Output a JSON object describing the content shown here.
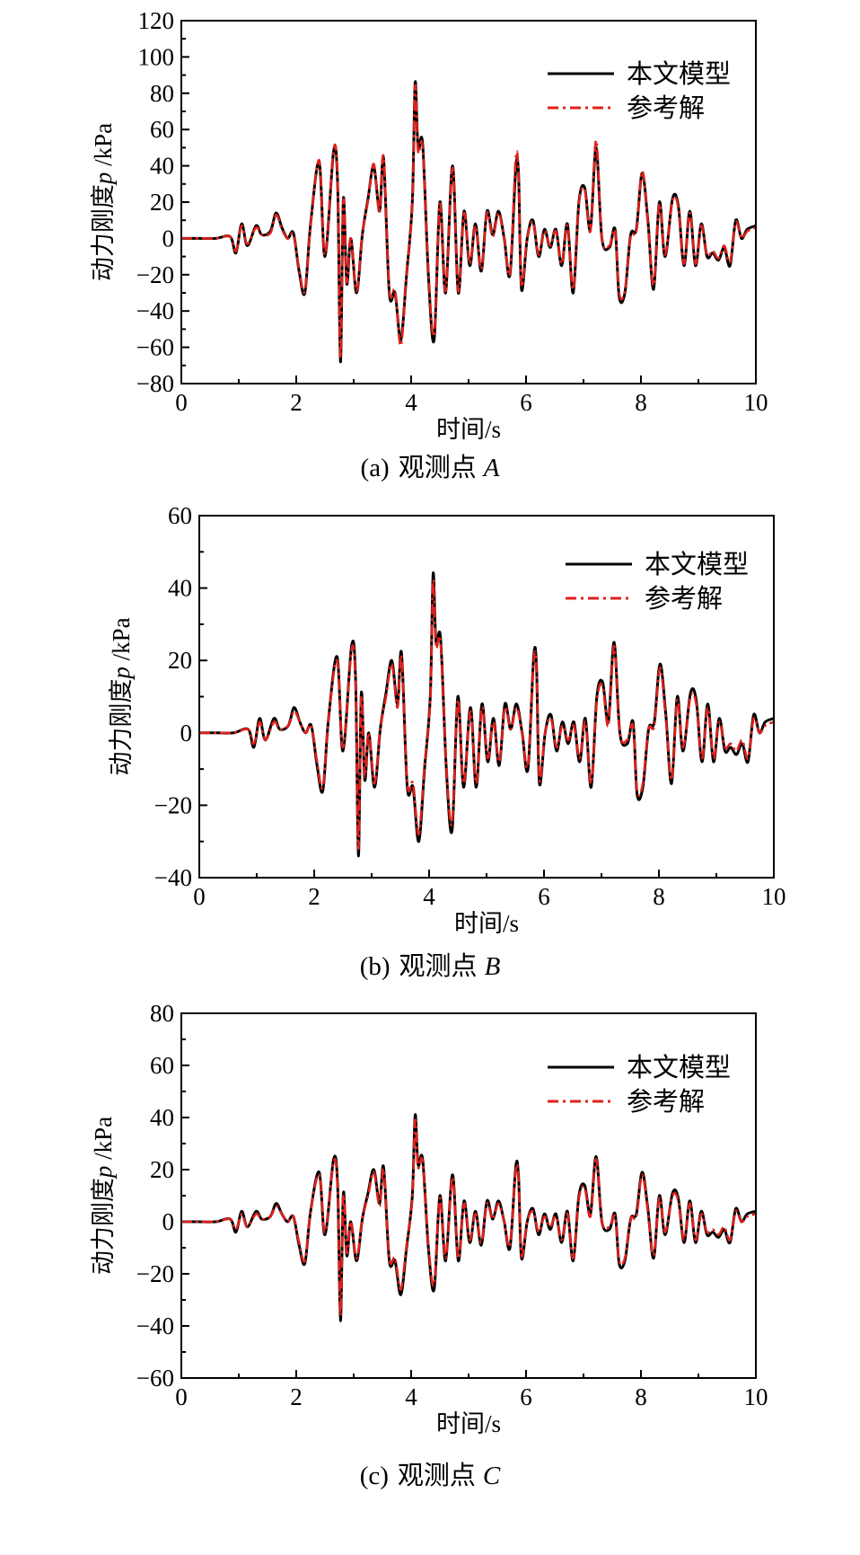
{
  "figure": {
    "colors": {
      "model": "#000000",
      "reference": "#e0201b",
      "axis": "#000000"
    },
    "legend": {
      "model": "本文模型",
      "reference": "参考解"
    },
    "panels": [
      {
        "caption_prefix": "(a)",
        "caption_text": "观测点",
        "caption_point": "A",
        "xlabel": "时间/s",
        "ylabel_prefix": "动力刚度",
        "ylabel_var": "p",
        "ylabel_unit": " /kPa"
      },
      {
        "caption_prefix": "(b)",
        "caption_text": "观测点",
        "caption_point": "B",
        "xlabel": "时间/s",
        "ylabel_prefix": "动力刚度",
        "ylabel_var": "p",
        "ylabel_unit": " /kPa"
      },
      {
        "caption_prefix": "(c)",
        "caption_text": "观测点",
        "caption_point": "C",
        "xlabel": "时间/s",
        "ylabel_prefix": "动力刚度",
        "ylabel_var": "p",
        "ylabel_unit": " /kPa"
      }
    ]
  },
  "chart_data": [
    {
      "type": "line",
      "xlim": [
        0,
        10
      ],
      "ylim": [
        -80,
        120
      ],
      "xticks": [
        0,
        2,
        4,
        6,
        8,
        10
      ],
      "yticks": [
        -80,
        -60,
        -40,
        -20,
        0,
        20,
        40,
        60,
        80,
        100,
        120
      ],
      "legend_position": "top-right",
      "x": [
        0,
        0.3,
        0.6,
        0.85,
        0.95,
        1.05,
        1.15,
        1.3,
        1.4,
        1.55,
        1.65,
        1.75,
        1.85,
        1.95,
        2.05,
        2.15,
        2.25,
        2.4,
        2.5,
        2.65,
        2.72,
        2.77,
        2.82,
        2.88,
        2.95,
        3.05,
        3.15,
        3.25,
        3.35,
        3.45,
        3.52,
        3.62,
        3.72,
        3.82,
        3.92,
        4.02,
        4.07,
        4.12,
        4.2,
        4.3,
        4.4,
        4.5,
        4.6,
        4.72,
        4.82,
        4.92,
        5.02,
        5.12,
        5.22,
        5.32,
        5.42,
        5.52,
        5.62,
        5.72,
        5.82,
        5.87,
        5.92,
        6.02,
        6.12,
        6.22,
        6.32,
        6.42,
        6.52,
        6.62,
        6.72,
        6.82,
        6.92,
        7.02,
        7.12,
        7.22,
        7.32,
        7.45,
        7.55,
        7.62,
        7.72,
        7.82,
        7.92,
        8.02,
        8.12,
        8.22,
        8.32,
        8.42,
        8.55,
        8.65,
        8.75,
        8.85,
        8.95,
        9.05,
        9.15,
        9.25,
        9.35,
        9.45,
        9.55,
        9.65,
        9.75,
        9.85,
        10.0
      ],
      "series": [
        {
          "name": "本文模型",
          "values": [
            0,
            0,
            0,
            1,
            -8,
            8,
            -4,
            7,
            2,
            4,
            14,
            6,
            0,
            3,
            -18,
            -30,
            8,
            42,
            -10,
            48,
            30,
            -68,
            22,
            -25,
            0,
            -30,
            2,
            22,
            40,
            15,
            44,
            -30,
            -30,
            -56,
            -20,
            20,
            86,
            50,
            52,
            -20,
            -56,
            20,
            -30,
            40,
            -30,
            15,
            -15,
            8,
            -18,
            15,
            2,
            15,
            0,
            -20,
            38,
            35,
            -28,
            0,
            10,
            -10,
            5,
            -5,
            5,
            -15,
            8,
            -30,
            20,
            28,
            5,
            50,
            0,
            -5,
            5,
            -32,
            -30,
            2,
            5,
            36,
            10,
            -28,
            20,
            -10,
            22,
            18,
            -15,
            15,
            -15,
            8,
            -10,
            -8,
            -12,
            -5,
            -15,
            10,
            0,
            5,
            7
          ]
        },
        {
          "name": "参考解",
          "values": [
            0,
            0,
            0,
            1,
            -7,
            7,
            -3,
            6,
            2,
            3,
            13,
            5,
            0,
            2,
            -17,
            -29,
            7,
            43,
            -9,
            49,
            31,
            -66,
            21,
            -24,
            0,
            -29,
            2,
            21,
            41,
            14,
            45,
            -28,
            -29,
            -59,
            -19,
            19,
            84,
            48,
            50,
            -18,
            -53,
            19,
            -29,
            39,
            -29,
            14,
            -14,
            7,
            -17,
            14,
            1,
            14,
            0,
            -19,
            44,
            34,
            -26,
            0,
            9,
            -9,
            4,
            -4,
            4,
            -14,
            7,
            -28,
            19,
            27,
            4,
            54,
            0,
            -4,
            4,
            -30,
            -29,
            1,
            4,
            37,
            9,
            -26,
            19,
            -9,
            21,
            17,
            -14,
            14,
            -14,
            7,
            -9,
            -7,
            -11,
            -4,
            -13,
            9,
            0,
            4,
            6
          ]
        }
      ]
    },
    {
      "type": "line",
      "xlim": [
        0,
        10
      ],
      "ylim": [
        -40,
        60
      ],
      "xticks": [
        0,
        2,
        4,
        6,
        8,
        10
      ],
      "yticks": [
        -40,
        -20,
        0,
        20,
        40,
        60
      ],
      "legend_position": "top-right",
      "x": [
        0,
        0.3,
        0.6,
        0.85,
        0.95,
        1.05,
        1.15,
        1.3,
        1.4,
        1.55,
        1.65,
        1.75,
        1.85,
        1.95,
        2.05,
        2.15,
        2.25,
        2.4,
        2.5,
        2.65,
        2.72,
        2.77,
        2.82,
        2.88,
        2.95,
        3.05,
        3.15,
        3.25,
        3.35,
        3.45,
        3.52,
        3.62,
        3.72,
        3.82,
        3.92,
        4.02,
        4.07,
        4.12,
        4.2,
        4.3,
        4.4,
        4.5,
        4.6,
        4.72,
        4.82,
        4.92,
        5.02,
        5.12,
        5.22,
        5.32,
        5.42,
        5.52,
        5.62,
        5.72,
        5.82,
        5.87,
        5.92,
        6.02,
        6.12,
        6.22,
        6.32,
        6.42,
        6.52,
        6.62,
        6.72,
        6.82,
        6.92,
        7.02,
        7.12,
        7.22,
        7.32,
        7.45,
        7.55,
        7.62,
        7.72,
        7.82,
        7.92,
        8.02,
        8.12,
        8.22,
        8.32,
        8.42,
        8.55,
        8.65,
        8.75,
        8.85,
        8.95,
        9.05,
        9.15,
        9.25,
        9.35,
        9.45,
        9.55,
        9.65,
        9.75,
        9.85,
        10.0
      ],
      "series": [
        {
          "name": "本文模型",
          "values": [
            0,
            0,
            0,
            1,
            -4,
            4,
            -2,
            4,
            1,
            2,
            7,
            3,
            0,
            2,
            -9,
            -16,
            4,
            21,
            -5,
            24,
            15,
            -34,
            11,
            -13,
            0,
            -15,
            1,
            11,
            20,
            8,
            22,
            -15,
            -15,
            -30,
            -10,
            10,
            44,
            25,
            26,
            -10,
            -27,
            10,
            -15,
            7,
            -15,
            8,
            -8,
            4,
            -9,
            8,
            1,
            8,
            0,
            -10,
            21,
            18,
            -14,
            0,
            5,
            -5,
            3,
            -3,
            3,
            -8,
            4,
            -15,
            10,
            14,
            3,
            25,
            0,
            -3,
            3,
            -17,
            -15,
            1,
            3,
            19,
            5,
            -14,
            10,
            -5,
            11,
            9,
            -8,
            8,
            -8,
            4,
            -5,
            -4,
            -6,
            -3,
            -8,
            5,
            0,
            3,
            4
          ]
        },
        {
          "name": "参考解",
          "values": [
            0,
            0,
            0,
            1,
            -3,
            3,
            -2,
            3,
            1,
            2,
            6,
            3,
            0,
            2,
            -8,
            -15,
            4,
            20,
            -4,
            23,
            14,
            -32,
            10,
            -12,
            0,
            -14,
            1,
            10,
            19,
            7,
            21,
            -14,
            -14,
            -28,
            -9,
            9,
            42,
            24,
            25,
            -9,
            -25,
            9,
            -14,
            6,
            -14,
            7,
            -7,
            3,
            -8,
            7,
            1,
            7,
            0,
            -9,
            20,
            17,
            -13,
            0,
            4,
            -4,
            2,
            -2,
            2,
            -7,
            3,
            -14,
            9,
            13,
            2,
            24,
            0,
            -2,
            2,
            -16,
            -14,
            1,
            2,
            18,
            4,
            -13,
            9,
            -4,
            10,
            8,
            -7,
            7,
            -7,
            3,
            -4,
            -3,
            -5,
            -2,
            -7,
            4,
            0,
            2,
            3
          ]
        }
      ]
    },
    {
      "type": "line",
      "xlim": [
        0,
        10
      ],
      "ylim": [
        -60,
        80
      ],
      "xticks": [
        0,
        2,
        4,
        6,
        8,
        10
      ],
      "yticks": [
        -60,
        -40,
        -20,
        0,
        20,
        40,
        60,
        80
      ],
      "legend_position": "top-right",
      "x": [
        0,
        0.3,
        0.6,
        0.85,
        0.95,
        1.05,
        1.15,
        1.3,
        1.4,
        1.55,
        1.65,
        1.75,
        1.85,
        1.95,
        2.05,
        2.15,
        2.25,
        2.4,
        2.5,
        2.65,
        2.72,
        2.77,
        2.82,
        2.88,
        2.95,
        3.05,
        3.15,
        3.25,
        3.35,
        3.45,
        3.52,
        3.62,
        3.72,
        3.82,
        3.92,
        4.02,
        4.07,
        4.12,
        4.2,
        4.3,
        4.4,
        4.5,
        4.6,
        4.72,
        4.82,
        4.92,
        5.02,
        5.12,
        5.22,
        5.32,
        5.42,
        5.52,
        5.62,
        5.72,
        5.82,
        5.87,
        5.92,
        6.02,
        6.12,
        6.22,
        6.32,
        6.42,
        6.52,
        6.62,
        6.72,
        6.82,
        6.92,
        7.02,
        7.12,
        7.22,
        7.32,
        7.45,
        7.55,
        7.62,
        7.72,
        7.82,
        7.92,
        8.02,
        8.12,
        8.22,
        8.32,
        8.42,
        8.55,
        8.65,
        8.75,
        8.85,
        8.95,
        9.05,
        9.15,
        9.25,
        9.35,
        9.45,
        9.55,
        9.65,
        9.75,
        9.85,
        10.0
      ],
      "series": [
        {
          "name": "本文模型",
          "values": [
            0,
            0,
            0,
            1,
            -4,
            4,
            -2,
            4,
            1,
            2,
            7,
            3,
            0,
            2,
            -9,
            -16,
            4,
            19,
            -5,
            24,
            14,
            -38,
            11,
            -13,
            0,
            -15,
            1,
            11,
            20,
            7,
            21,
            -15,
            -15,
            -28,
            -10,
            10,
            41,
            22,
            24,
            -10,
            -26,
            10,
            -15,
            18,
            -15,
            8,
            -8,
            4,
            -9,
            8,
            1,
            8,
            0,
            -10,
            21,
            17,
            -14,
            0,
            5,
            -5,
            3,
            -3,
            3,
            -8,
            4,
            -15,
            10,
            14,
            3,
            25,
            0,
            -3,
            3,
            -16,
            -15,
            1,
            3,
            19,
            5,
            -14,
            10,
            -5,
            11,
            9,
            -8,
            8,
            -8,
            4,
            -5,
            -4,
            -6,
            -3,
            -8,
            5,
            0,
            3,
            4
          ]
        },
        {
          "name": "参考解",
          "values": [
            0,
            0,
            0,
            1,
            -3,
            3,
            -2,
            3,
            1,
            2,
            6,
            3,
            0,
            2,
            -8,
            -15,
            4,
            18,
            -4,
            23,
            13,
            -36,
            10,
            -12,
            0,
            -14,
            1,
            10,
            19,
            6,
            20,
            -14,
            -14,
            -26,
            -9,
            9,
            39,
            21,
            23,
            -9,
            -24,
            9,
            -14,
            17,
            -14,
            7,
            -7,
            3,
            -8,
            7,
            1,
            7,
            0,
            -9,
            20,
            16,
            -13,
            0,
            4,
            -4,
            2,
            -2,
            2,
            -7,
            3,
            -14,
            9,
            13,
            2,
            24,
            0,
            -2,
            2,
            -15,
            -14,
            1,
            2,
            18,
            4,
            -13,
            9,
            -4,
            10,
            8,
            -7,
            7,
            -7,
            3,
            -4,
            -3,
            -5,
            -2,
            -7,
            4,
            0,
            2,
            3
          ]
        }
      ]
    }
  ]
}
